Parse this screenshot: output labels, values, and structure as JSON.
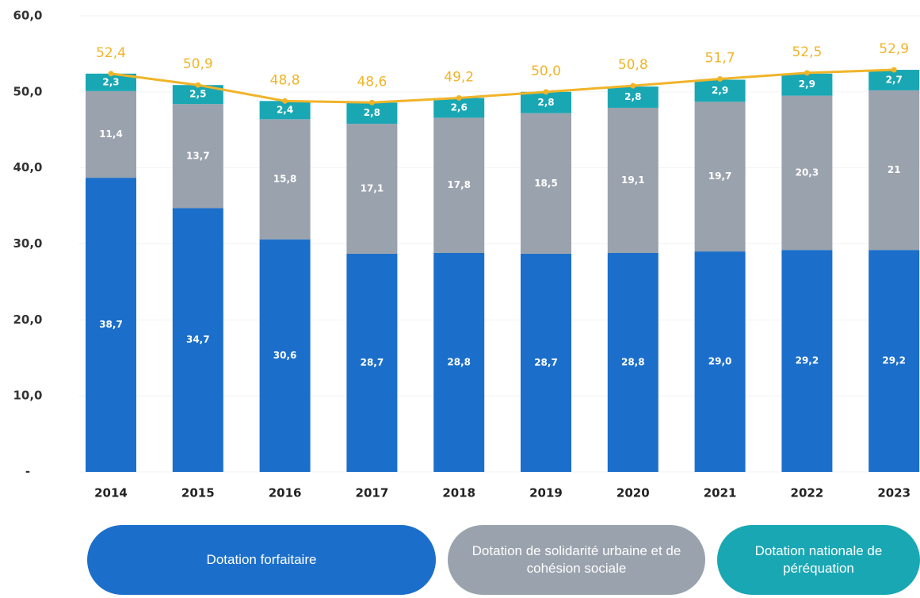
{
  "chart_data": {
    "type": "bar",
    "stacked": true,
    "categories": [
      "2014",
      "2015",
      "2016",
      "2017",
      "2018",
      "2019",
      "2020",
      "2021",
      "2022",
      "2023"
    ],
    "series": [
      {
        "name": "Dotation forfaitaire",
        "color": "#1b6fca",
        "values": [
          38.7,
          34.7,
          30.6,
          28.7,
          28.8,
          28.7,
          28.8,
          29.0,
          29.2,
          29.2
        ],
        "value_labels": [
          "38,7",
          "34,7",
          "30,6",
          "28,7",
          "28,8",
          "28,7",
          "28,8",
          "29,0",
          "29,2",
          "29,2"
        ]
      },
      {
        "name": "Dotation de solidarité urbaine et de cohésion sociale",
        "color": "#9aa2ad",
        "values": [
          11.4,
          13.7,
          15.8,
          17.1,
          17.8,
          18.5,
          19.1,
          19.7,
          20.3,
          21
        ],
        "value_labels": [
          "11,4",
          "13,7",
          "15,8",
          "17,1",
          "17,8",
          "18,5",
          "19,1",
          "19,7",
          "20,3",
          "21"
        ]
      },
      {
        "name": "Dotation nationale de péréquation",
        "color": "#19a7b4",
        "values": [
          2.3,
          2.5,
          2.4,
          2.8,
          2.6,
          2.8,
          2.8,
          2.9,
          2.9,
          2.7
        ],
        "value_labels": [
          "2,3",
          "2,5",
          "2,4",
          "2,8",
          "2,6",
          "2,8",
          "2,8",
          "2,9",
          "2,9",
          "2,7"
        ]
      }
    ],
    "total": {
      "color": "#f0b429",
      "values": [
        52.4,
        50.9,
        48.8,
        48.6,
        49.2,
        50.0,
        50.8,
        51.7,
        52.5,
        52.9
      ],
      "value_labels": [
        "52,4",
        "50,9",
        "48,8",
        "48,6",
        "49,2",
        "50,0",
        "50,8",
        "51,7",
        "52,5",
        "52,9"
      ]
    },
    "ylim": [
      0,
      60
    ],
    "yticks": [
      {
        "value": 0,
        "label": "-"
      },
      {
        "value": 10,
        "label": "10,0"
      },
      {
        "value": 20,
        "label": "20,0"
      },
      {
        "value": 30,
        "label": "30,0"
      },
      {
        "value": 40,
        "label": "40,0"
      },
      {
        "value": 50,
        "label": "50,0"
      },
      {
        "value": 60,
        "label": "60,0"
      }
    ],
    "grid": true
  }
}
